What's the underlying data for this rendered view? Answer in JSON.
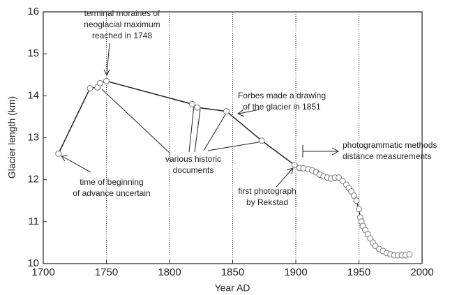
{
  "chart_data": {
    "type": "line",
    "xlabel": "Year AD",
    "ylabel": "Glacier length (km)",
    "x": [
      1712,
      1737,
      1743,
      1745,
      1750,
      1818,
      1822,
      1845,
      1873,
      1899,
      1903,
      1906,
      1910,
      1913,
      1916,
      1919,
      1922,
      1925,
      1928,
      1931,
      1934,
      1937,
      1940,
      1942,
      1944,
      1946,
      1948,
      1950,
      1951,
      1952,
      1953,
      1955,
      1957,
      1959,
      1961,
      1963,
      1966,
      1969,
      1972,
      1975,
      1978,
      1981,
      1984,
      1987,
      1990
    ],
    "series": [
      {
        "name": "Glacier length",
        "color": "#222222",
        "values": [
          12.62,
          14.18,
          14.2,
          14.3,
          14.35,
          13.8,
          13.72,
          13.63,
          12.93,
          12.35,
          12.28,
          12.27,
          12.25,
          12.22,
          12.18,
          12.12,
          12.08,
          12.05,
          12.03,
          12.05,
          12.05,
          11.97,
          11.88,
          11.8,
          11.72,
          11.62,
          11.5,
          11.3,
          11.1,
          11.0,
          10.9,
          10.8,
          10.7,
          10.6,
          10.5,
          10.42,
          10.35,
          10.3,
          10.25,
          10.22,
          10.2,
          10.2,
          10.2,
          10.2,
          10.22
        ]
      }
    ],
    "xlim": [
      1700,
      2000
    ],
    "xticks": [
      1700,
      1750,
      1800,
      1850,
      1900,
      1950,
      2000
    ],
    "ylim": [
      10,
      16
    ],
    "yticks": [
      10,
      11,
      12,
      13,
      14,
      15,
      16
    ],
    "grid": "x",
    "annotations": [
      {
        "lines": [
          "terminal moraines of",
          "neoglacial maximum",
          "reached in 1748"
        ]
      },
      {
        "lines": [
          "Forbes made a drawing",
          "of the glacier in 1851"
        ]
      },
      {
        "lines": [
          "various historic",
          "documents"
        ]
      },
      {
        "lines": [
          "time of beginning",
          "of advance uncertain"
        ]
      },
      {
        "lines": [
          "first photograph",
          "by Rekstad"
        ]
      },
      {
        "lines": [
          "photogrammatic methods",
          "distance measurements"
        ]
      }
    ]
  }
}
